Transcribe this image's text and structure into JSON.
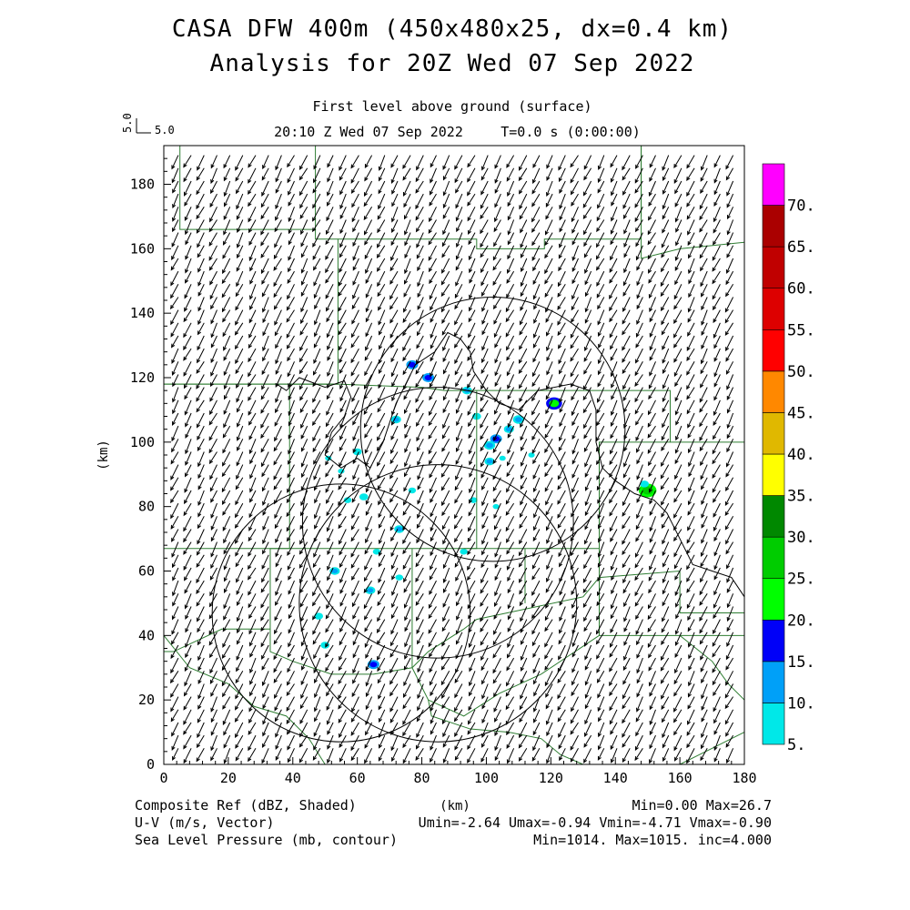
{
  "header": {
    "title_line1": "CASA DFW 400m (450x480x25, dx=0.4 km)",
    "title_line2": "Analysis for 20Z Wed 07 Sep 2022",
    "level": "First level above ground (surface)",
    "time": "20:10 Z Wed 07 Sep 2022",
    "model_time": "T=0.0 s (0:00:00)",
    "ref_vector_value_x": "5.0",
    "ref_vector_value_y": "5.0"
  },
  "footer": {
    "field1": "Composite Ref (dBZ, Shaded)",
    "field2": "U-V (m/s, Vector)",
    "field3": "Sea Level Pressure (mb, contour)",
    "field1_stats": "Min=0.00 Max=26.7",
    "field2_stats": "Umin=-2.64 Umax=-0.94 Vmin=-4.71 Vmax=-0.90",
    "field3_stats": "Min=1014. Max=1015. inc=4.000"
  },
  "chart_data": {
    "type": "heatmap",
    "xlabel": "(km)",
    "ylabel": "(km)",
    "xlim": [
      0,
      180
    ],
    "ylim": [
      0,
      192
    ],
    "xticks": [
      "0",
      "20",
      "40",
      "60",
      "80",
      "100",
      "120",
      "140",
      "160",
      "180"
    ],
    "yticks": [
      "0",
      "20",
      "40",
      "60",
      "80",
      "100",
      "120",
      "140",
      "160",
      "180"
    ],
    "colorbar": {
      "labels": [
        "5.",
        "10.",
        "15.",
        "20.",
        "25.",
        "30.",
        "35.",
        "40.",
        "45.",
        "50.",
        "55.",
        "60.",
        "65.",
        "70."
      ],
      "colors": [
        "#00e8e8",
        "#00a0f8",
        "#0000f8",
        "#00ff00",
        "#00cc00",
        "#008800",
        "#ffff00",
        "#e0b800",
        "#ff8800",
        "#ff0000",
        "#dd0000",
        "#c00000",
        "#aa0000",
        "#ff00ff"
      ]
    },
    "wind": {
      "u_mean": -1.8,
      "v_mean": -3.6,
      "spacing_km": 4
    },
    "radar_rings": [
      {
        "cx": 55,
        "cy": 47,
        "r": 40
      },
      {
        "cx": 85,
        "cy": 50,
        "r": 43
      },
      {
        "cx": 102,
        "cy": 104,
        "r": 41
      },
      {
        "cx": 85,
        "cy": 75,
        "r": 42
      }
    ],
    "echoes": [
      {
        "x": 77,
        "y": 124,
        "dbz": 15
      },
      {
        "x": 82,
        "y": 120,
        "dbz": 15
      },
      {
        "x": 94,
        "y": 116,
        "dbz": 12
      },
      {
        "x": 121,
        "y": 112,
        "dbz": 22
      },
      {
        "x": 110,
        "y": 107,
        "dbz": 14
      },
      {
        "x": 103,
        "y": 101,
        "dbz": 15
      },
      {
        "x": 101,
        "y": 99,
        "dbz": 14
      },
      {
        "x": 101,
        "y": 94,
        "dbz": 12
      },
      {
        "x": 97,
        "y": 108,
        "dbz": 10
      },
      {
        "x": 72,
        "y": 107,
        "dbz": 12
      },
      {
        "x": 107,
        "y": 104,
        "dbz": 12
      },
      {
        "x": 60,
        "y": 97,
        "dbz": 10
      },
      {
        "x": 150,
        "y": 85,
        "dbz": 25
      },
      {
        "x": 149,
        "y": 87,
        "dbz": 10
      },
      {
        "x": 73,
        "y": 73,
        "dbz": 12
      },
      {
        "x": 77,
        "y": 85,
        "dbz": 8
      },
      {
        "x": 62,
        "y": 83,
        "dbz": 10
      },
      {
        "x": 57,
        "y": 82,
        "dbz": 8
      },
      {
        "x": 53,
        "y": 60,
        "dbz": 12
      },
      {
        "x": 64,
        "y": 54,
        "dbz": 12
      },
      {
        "x": 48,
        "y": 46,
        "dbz": 10
      },
      {
        "x": 50,
        "y": 37,
        "dbz": 10
      },
      {
        "x": 65,
        "y": 31,
        "dbz": 15
      },
      {
        "x": 93,
        "y": 66,
        "dbz": 8
      },
      {
        "x": 96,
        "y": 82,
        "dbz": 8
      },
      {
        "x": 73,
        "y": 58,
        "dbz": 8
      },
      {
        "x": 66,
        "y": 66,
        "dbz": 8
      },
      {
        "x": 105,
        "y": 95,
        "dbz": 6
      },
      {
        "x": 114,
        "y": 96,
        "dbz": 6
      },
      {
        "x": 55,
        "y": 91,
        "dbz": 6
      },
      {
        "x": 51,
        "y": 95,
        "dbz": 6
      },
      {
        "x": 103,
        "y": 80,
        "dbz": 6
      }
    ]
  }
}
